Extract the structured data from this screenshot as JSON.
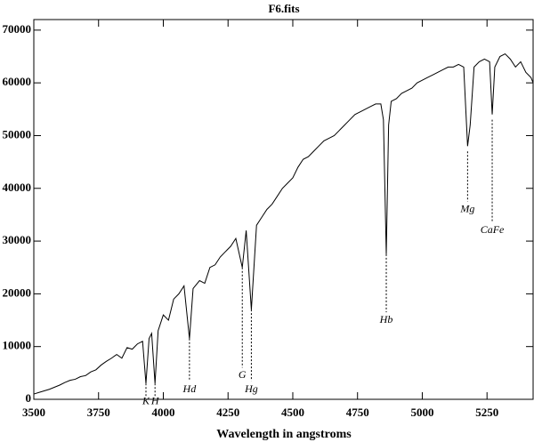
{
  "chart_data": {
    "type": "line",
    "title": "F6.fits",
    "x_label": "Wavelength in angstroms",
    "xlim": [
      3500,
      5428
    ],
    "ylim": [
      0,
      72000
    ],
    "xticks": [
      3500,
      3750,
      4000,
      4250,
      4500,
      4750,
      5000,
      5250
    ],
    "yticks": [
      0,
      10000,
      20000,
      30000,
      40000,
      50000,
      60000,
      70000
    ],
    "color": "#000000",
    "x": [
      3500,
      3520,
      3540,
      3560,
      3580,
      3600,
      3620,
      3640,
      3660,
      3680,
      3700,
      3720,
      3740,
      3760,
      3780,
      3800,
      3820,
      3840,
      3860,
      3880,
      3900,
      3920,
      3933,
      3945,
      3955,
      3968,
      3980,
      4000,
      4020,
      4040,
      4060,
      4080,
      4101,
      4115,
      4140,
      4160,
      4180,
      4200,
      4220,
      4240,
      4260,
      4280,
      4305,
      4320,
      4340,
      4360,
      4380,
      4400,
      4420,
      4440,
      4460,
      4480,
      4500,
      4520,
      4540,
      4560,
      4580,
      4600,
      4620,
      4640,
      4660,
      4680,
      4700,
      4720,
      4740,
      4760,
      4780,
      4800,
      4820,
      4840,
      4850,
      4861,
      4870,
      4880,
      4900,
      4920,
      4940,
      4960,
      4980,
      5000,
      5020,
      5040,
      5060,
      5080,
      5100,
      5120,
      5140,
      5160,
      5170,
      5175,
      5185,
      5200,
      5220,
      5240,
      5260,
      5270,
      5280,
      5300,
      5320,
      5340,
      5360,
      5380,
      5400,
      5420,
      5428
    ],
    "values": [
      1000,
      1300,
      1600,
      1900,
      2300,
      2700,
      3200,
      3600,
      3800,
      4300,
      4500,
      5200,
      5600,
      6500,
      7200,
      7800,
      8500,
      7800,
      9800,
      9500,
      10500,
      11000,
      3000,
      11500,
      12500,
      3000,
      13000,
      16000,
      15000,
      19000,
      20000,
      21500,
      11500,
      21000,
      22500,
      22000,
      25000,
      25500,
      27000,
      28000,
      29000,
      30500,
      25000,
      32000,
      17000,
      33000,
      34500,
      36000,
      37000,
      38500,
      40000,
      41000,
      42000,
      44000,
      45500,
      46000,
      47000,
      48000,
      49000,
      49500,
      50000,
      51000,
      52000,
      53000,
      54000,
      54500,
      55000,
      55500,
      56000,
      56000,
      53000,
      27500,
      52000,
      56500,
      57000,
      58000,
      58500,
      59000,
      60000,
      60500,
      61000,
      61500,
      62000,
      62500,
      63000,
      63000,
      63500,
      63000,
      53000,
      48000,
      52000,
      63000,
      64000,
      64500,
      64000,
      54000,
      63000,
      65000,
      65500,
      64500,
      63000,
      64000,
      62000,
      61000,
      60000
    ],
    "annotations": [
      {
        "text": "K",
        "x": 3933,
        "y": -500,
        "line": [
          3000,
          500
        ]
      },
      {
        "text": "H",
        "x": 3968,
        "y": -500,
        "line": [
          3000,
          500
        ]
      },
      {
        "text": "Hd",
        "x": 4101,
        "y": 1800,
        "line": [
          11500,
          3500
        ]
      },
      {
        "text": "G",
        "x": 4305,
        "y": 4500,
        "line": [
          25000,
          6000
        ]
      },
      {
        "text": "Hg",
        "x": 4340,
        "y": 1800,
        "line": [
          17000,
          3500
        ]
      },
      {
        "text": "Hb",
        "x": 4861,
        "y": 15000,
        "line": [
          27500,
          16500
        ]
      },
      {
        "text": "Mg",
        "x": 5175,
        "y": 36000,
        "line": [
          47000,
          37500
        ]
      },
      {
        "text": "CaFe",
        "x": 5270,
        "y": 32000,
        "line": [
          53000,
          33500
        ]
      }
    ]
  }
}
